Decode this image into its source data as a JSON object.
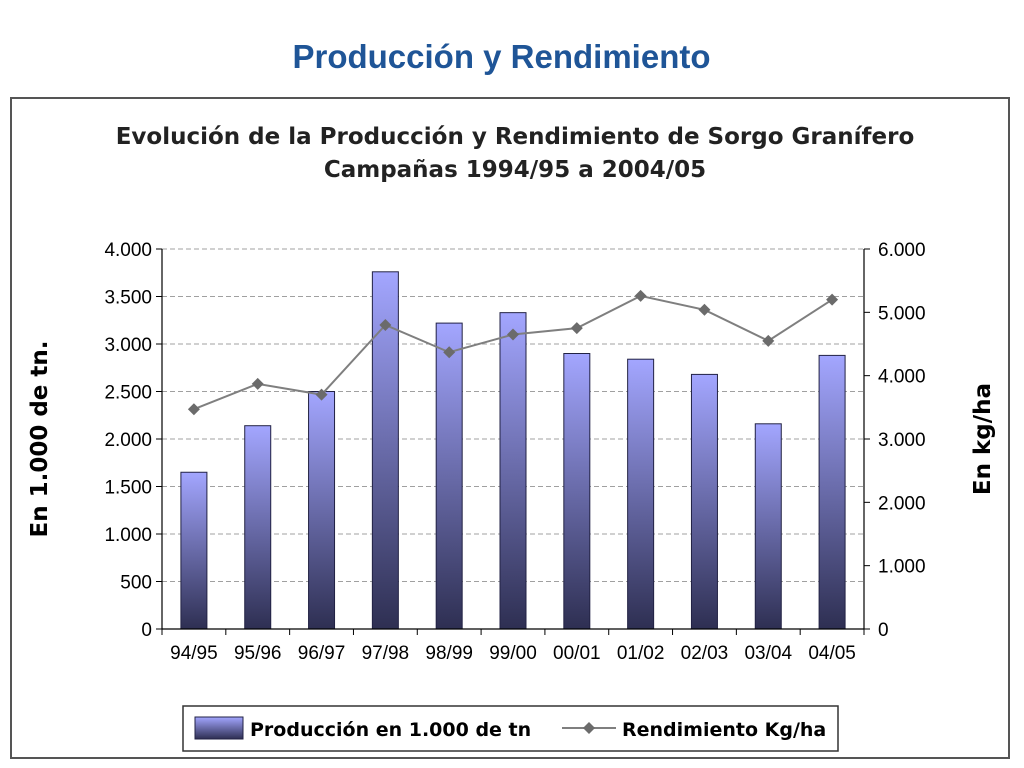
{
  "slide": {
    "title": "Producción y Rendimiento"
  },
  "colors": {
    "title": "#1f5597",
    "bar_top": "#a3a6ff",
    "bar_bottom": "#2e2f52",
    "bar_border": "#222244",
    "line": "#7f7f7f",
    "marker": "#6b6b6b",
    "grid": "#a0a0a0"
  },
  "chart_data": {
    "type": "bar",
    "title": [
      "Evolución de la Producción y Rendimiento de Sorgo Granífero",
      "Campañas 1994/95 a 2004/05"
    ],
    "categories": [
      "94/95",
      "95/96",
      "96/97",
      "97/98",
      "98/99",
      "99/00",
      "00/01",
      "01/02",
      "02/03",
      "03/04",
      "04/05"
    ],
    "series": [
      {
        "name": "Producción en 1.000 de tn",
        "type": "bar",
        "axis": "left",
        "values": [
          1650,
          2140,
          2500,
          3760,
          3220,
          3330,
          2900,
          2840,
          2680,
          2160,
          2880
        ]
      },
      {
        "name": "Rendimiento Kg/ha",
        "type": "line",
        "axis": "right",
        "values": [
          3470,
          3870,
          3700,
          4800,
          4370,
          4650,
          4750,
          5260,
          5040,
          4550,
          5200
        ]
      }
    ],
    "ylabel": "En 1.000 de tn.",
    "ylim": [
      0,
      4000
    ],
    "yticks": [
      0,
      500,
      1000,
      1500,
      2000,
      2500,
      3000,
      3500,
      4000
    ],
    "ytick_labels": [
      "0",
      "500",
      "1.000",
      "1.500",
      "2.000",
      "2.500",
      "3.000",
      "3.500",
      "4.000"
    ],
    "y2label": "En kg/ha",
    "y2lim": [
      0,
      6000
    ],
    "y2ticks": [
      0,
      1000,
      2000,
      3000,
      4000,
      5000,
      6000
    ],
    "y2tick_labels": [
      "0",
      "1.000",
      "2.000",
      "3.000",
      "4.000",
      "5.000",
      "6.000"
    ],
    "grid": true,
    "legend": "bottom"
  }
}
